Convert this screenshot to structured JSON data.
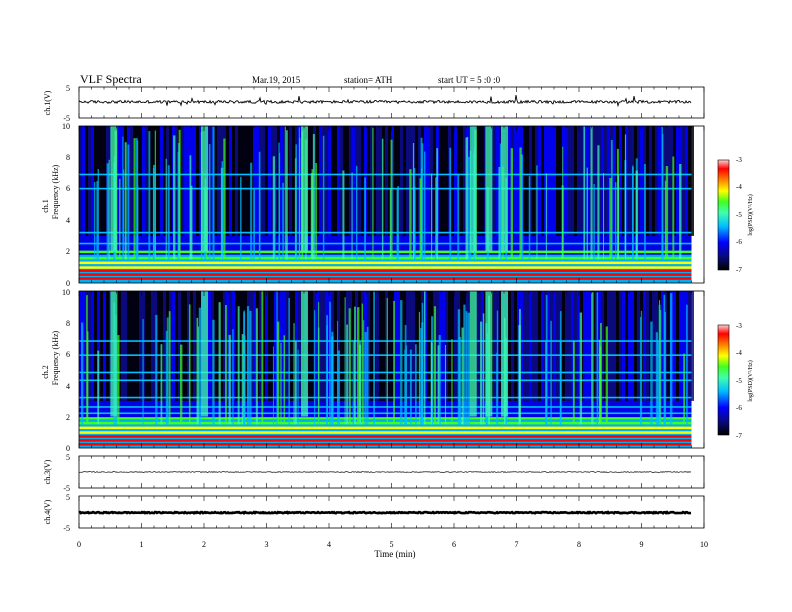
{
  "header": {
    "title": "VLF  Spectra",
    "date": "Mar.19, 2015",
    "station": "station= ATH",
    "start": "start  UT  =   5  :0  :0"
  },
  "colors": {
    "colormap": [
      "#000000",
      "#0a0a7c",
      "#0000ff",
      "#00c0ff",
      "#40ffb0",
      "#40ff20",
      "#ffff00",
      "#ff8000",
      "#ff0000",
      "#ffd0d0"
    ],
    "trace": "#000000",
    "background": "#ffffff"
  },
  "chart_data": [
    {
      "type": "line",
      "ylabel": "ch.1(V)",
      "ylim": [
        -5,
        5
      ],
      "yticks": [
        "5",
        "-5"
      ],
      "description_values": {
        "mean_volts": 0.2,
        "noise_amplitude_volts": 0.9,
        "spikes": true
      }
    },
    {
      "type": "heatmap",
      "ylabel_top": "ch.1",
      "ylabel": "Frequency  (kHz)",
      "ylim": [
        0,
        10
      ],
      "yticks": [
        "0",
        "2",
        "4",
        "6",
        "8",
        "10"
      ],
      "colorbar": {
        "label": "log(PSD)(V²/Hz)",
        "range": [
          -7,
          -3
        ],
        "ticks": [
          "-3",
          "-4",
          "-5",
          "-6",
          "-7"
        ]
      },
      "strong_bands_khz": [
        0.3,
        0.55,
        0.8,
        1.0,
        1.3,
        1.6,
        2.0,
        2.5,
        3.2,
        6.0,
        6.9
      ],
      "intense_bursts_min": [
        0.55,
        2.0,
        3.6,
        6.3,
        6.55,
        6.8
      ]
    },
    {
      "type": "heatmap",
      "ylabel_top": "ch.2",
      "ylabel": "Frequency  (kHz)",
      "ylim": [
        0,
        10
      ],
      "yticks": [
        "0",
        "2",
        "4",
        "6",
        "8",
        "10"
      ],
      "colorbar": {
        "label": "log(PSD)(V²/Hz)",
        "range": [
          -7,
          -3
        ],
        "ticks": [
          "-3",
          "-4",
          "-5",
          "-6",
          "-7"
        ]
      },
      "strong_bands_khz": [
        0.25,
        0.5,
        0.75,
        1.0,
        1.3,
        1.6,
        1.9,
        2.2,
        2.6,
        3.2,
        4.3,
        4.8,
        5.9,
        6.8
      ],
      "intense_bursts_min": [
        0.55,
        2.0,
        3.6,
        6.3,
        6.55,
        6.8
      ]
    },
    {
      "type": "line",
      "ylabel": "ch.3(V)",
      "ylim": [
        -5,
        5
      ],
      "yticks": [
        "5",
        "-5"
      ],
      "description_values": {
        "mean_volts": 0.0,
        "noise_amplitude_volts": 0.25,
        "spikes": false
      }
    },
    {
      "type": "line",
      "ylabel": "ch.4(V)",
      "ylim": [
        -5,
        5
      ],
      "yticks": [
        "5",
        "-5"
      ],
      "description_values": {
        "mean_volts": -0.2,
        "noise_amplitude_volts": 0.35,
        "spikes": false
      }
    }
  ],
  "xaxis": {
    "label": "Time  (min)",
    "xlim": [
      0,
      10
    ],
    "data_end": 9.8,
    "ticks": [
      "0",
      "1",
      "2",
      "3",
      "4",
      "5",
      "6",
      "7",
      "8",
      "9",
      "10"
    ]
  }
}
